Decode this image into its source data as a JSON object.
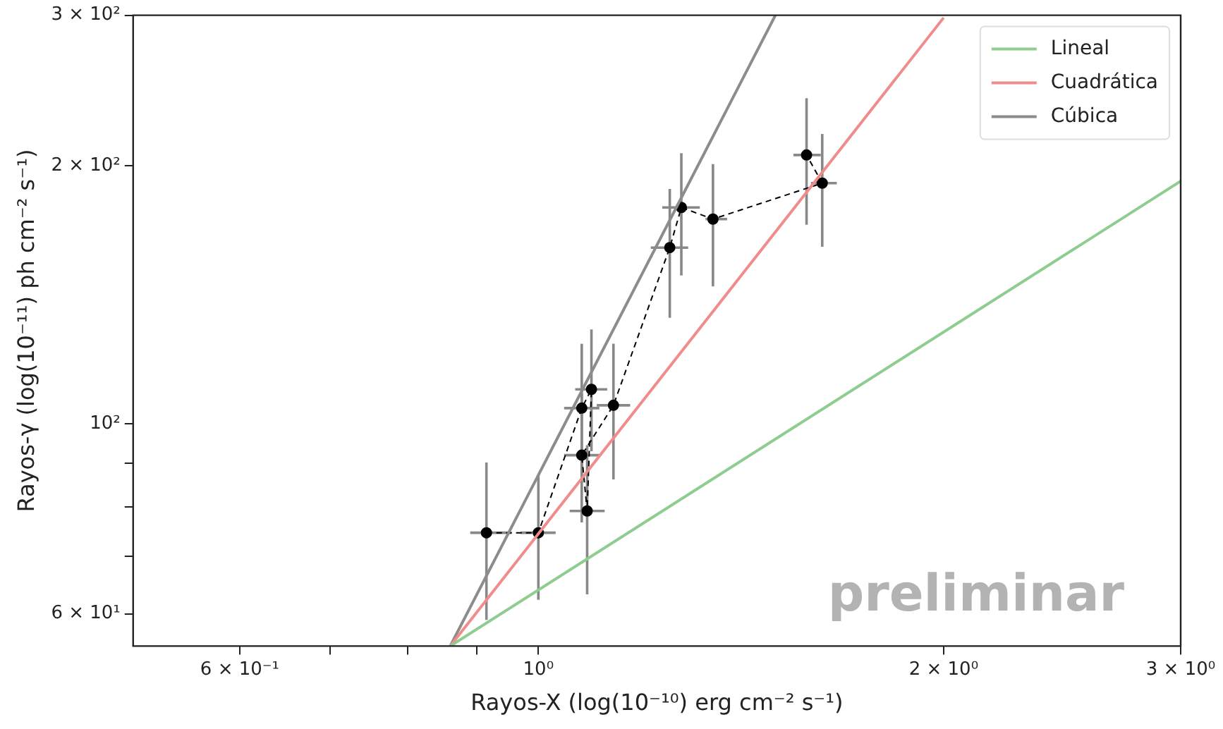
{
  "chart_data": {
    "type": "line",
    "xlabel": "Rayos-X (log(10⁻¹⁰) erg cm⁻² s⁻¹)",
    "ylabel": "Rayos-γ (log(10⁻¹¹) ph cm⁻² s⁻¹)",
    "log": "xy",
    "grid": false,
    "legend": "top right",
    "marker": "none",
    "line_style": "solid",
    "xlim": [
      0.5,
      3
    ],
    "ylim": [
      55,
      300
    ],
    "xticks": [
      {
        "value": 0.6,
        "label": "6 × 10⁻¹"
      },
      {
        "value": 0.7,
        "label": null
      },
      {
        "value": 0.8,
        "label": null
      },
      {
        "value": 0.9,
        "label": null
      },
      {
        "value": 1,
        "label": "10⁰"
      },
      {
        "value": 2,
        "label": "2 × 10⁰"
      },
      {
        "value": 3,
        "label": "3 × 10⁰"
      }
    ],
    "yticks": [
      {
        "value": 60,
        "label": "6 × 10¹"
      },
      {
        "value": 70,
        "label": null
      },
      {
        "value": 80,
        "label": null
      },
      {
        "value": 90,
        "label": null
      },
      {
        "value": 100,
        "label": "10²"
      },
      {
        "value": 200,
        "label": "2 × 10²"
      },
      {
        "value": 300,
        "label": "3 × 10²"
      }
    ],
    "series": [
      {
        "name": "Lineal",
        "color": "#8fcc8f",
        "x": [
          0.86,
          3
        ],
        "values": [
          55,
          192
        ]
      },
      {
        "name": "Cuadrática",
        "color": "#f08c8c",
        "x": [
          0.86,
          2.0
        ],
        "values": [
          55,
          298
        ]
      },
      {
        "name": "Cúbica",
        "color": "#8c8c8c",
        "x": [
          0.86,
          1.5
        ],
        "values": [
          55,
          300
        ]
      },
      {
        "color": "#000000",
        "line_style": "dashed",
        "marker": "circle",
        "x": [
          0.915,
          1.0,
          1.077,
          1.095,
          1.087,
          1.077,
          1.137,
          1.252,
          1.277,
          1.348,
          1.625,
          1.582
        ],
        "values": [
          74.6,
          74.6,
          104.3,
          109.7,
          79.1,
          91.9,
          105.1,
          160.6,
          178.9,
          173.4,
          191,
          206
        ],
        "errors": [
          [
            59.0,
            90.1
          ],
          [
            62.3,
            87.1
          ],
          [
            87.7,
            124.0
          ],
          [
            92.9,
            128.9
          ],
          [
            63.2,
            94.4
          ],
          [
            76.7,
            108.4
          ],
          [
            86.1,
            124.0
          ],
          [
            133,
            188
          ],
          [
            149,
            207
          ],
          [
            144.7,
            201
          ],
          [
            161,
            218
          ],
          [
            170.8,
            240
          ]
        ],
        "xerrors": [
          [
            0.89,
            0.955
          ],
          [
            0.97,
            1.03
          ],
          [
            1.045,
            1.11
          ],
          [
            1.065,
            1.125
          ],
          [
            1.055,
            1.12
          ],
          [
            1.045,
            1.11
          ],
          [
            1.105,
            1.17
          ],
          [
            1.212,
            1.292
          ],
          [
            1.236,
            1.318
          ],
          [
            1.331,
            1.381
          ],
          [
            1.594,
            1.666
          ],
          [
            1.547,
            1.621
          ]
        ]
      }
    ],
    "annotations": [
      "preliminar"
    ]
  }
}
